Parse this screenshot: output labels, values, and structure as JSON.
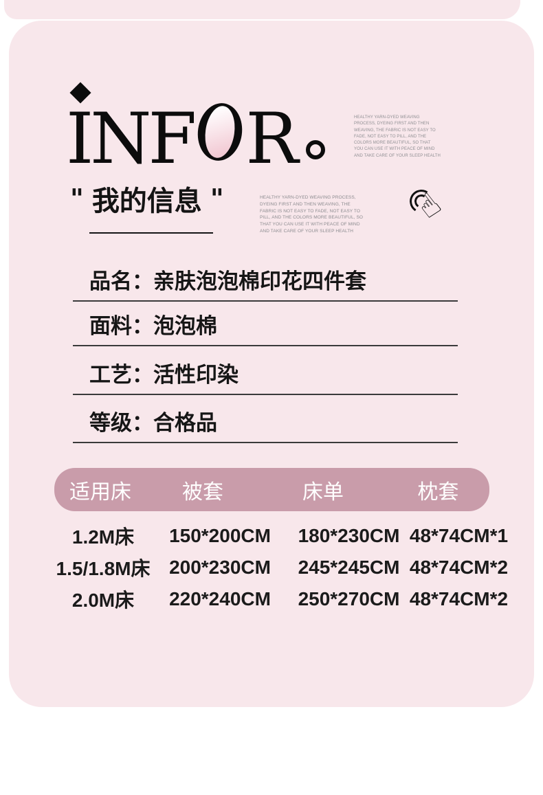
{
  "colors": {
    "panel_pink": "#f8e7eb",
    "table_header_bg": "#c99caa",
    "logo_black": "#0c0c0c",
    "logo_o_fill": "#f2c9d3",
    "tagline_gray": "#8f8f93"
  },
  "logo": {
    "text": "INFOR",
    "pre": "INF",
    "post": "R",
    "full_stop_mark": "。"
  },
  "top_tagline": "HEALTHY YARN-DYED WEAVING PROCESS, DYEING FIRST AND THEN WEAVING, THE FABRIC IS NOT EASY TO FADE, NOT EASY TO PILL, AND THE COLORS MORE BEAUTIFUL, SO THAT YOU CAN USE IT WITH PEACE OF MIND AND TAKE CARE OF YOUR SLEEP HEALTH",
  "section": {
    "open_quote": "\"",
    "title": "我的信息",
    "close_quote": "\"",
    "tagline": "HEALTHY YARN-DYED WEAVING PROCESS, DYEING FIRST AND THEN WEAVING, THE FABRIC IS NOT EASY TO FADE, NOT EASY TO PILL, AND THE COLORS MORE BEAUTIFUL, SO THAT YOU CAN USE IT WITH PEACE OF MIND AND TAKE CARE OF YOUR SLEEP HEALTH"
  },
  "specs": [
    {
      "label": "品名：",
      "value": "亲肤泡泡棉印花四件套"
    },
    {
      "label": "面料：",
      "value": "泡泡棉"
    },
    {
      "label": "工艺：",
      "value": "活性印染"
    },
    {
      "label": "等级：",
      "value": "合格品"
    }
  ],
  "size_table": {
    "headers": [
      "适用床",
      "被套",
      "床单",
      "枕套"
    ],
    "rows": [
      [
        "1.2M床",
        "150*200CM",
        "180*230CM",
        "48*74CM*1"
      ],
      [
        "1.5/1.8M床",
        "200*230CM",
        "245*245CM",
        "48*74CM*2"
      ],
      [
        "2.0M床",
        "220*240CM",
        "250*270CM",
        "48*74CM*2"
      ]
    ]
  },
  "icons": {
    "hand": "tap-hand-icon",
    "logo_diamond": "diamond-dot",
    "logo_fullstop": "circle-fullstop"
  }
}
